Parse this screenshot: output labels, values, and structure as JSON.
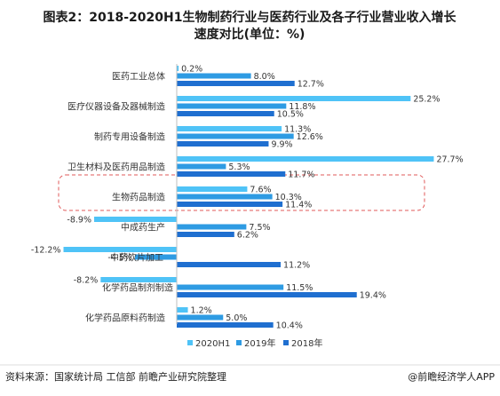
{
  "chart_data": {
    "type": "bar",
    "orientation": "horizontal",
    "title": "图表2：2018-2020H1生物制药行业与医药行业及各子行业营业收入增长速度对比(单位：%)",
    "categories": [
      "医药工业总体",
      "医疗仪器设备及器械制造",
      "制药专用设备制造",
      "卫生材料及医药用品制造",
      "生物药品制造",
      "中成药生产",
      "中药饮片加工",
      "化学药品制剂制造",
      "化学药品原料药制造"
    ],
    "series": [
      {
        "name": "2020H1",
        "color": "#4FC3F7",
        "values": [
          0.2,
          25.2,
          11.3,
          27.7,
          7.6,
          -8.9,
          -12.2,
          -8.2,
          1.2
        ],
        "labels": [
          "0.2%",
          "25.2%",
          "11.3%",
          "27.7%",
          "7.6%",
          "-8.9%",
          "-12.2%",
          "-8.2%",
          "1.2%"
        ]
      },
      {
        "name": "2019年",
        "color": "#2E9BE3",
        "values": [
          8.0,
          11.8,
          12.6,
          5.3,
          10.3,
          7.5,
          -4.5,
          11.5,
          5.0
        ],
        "labels": [
          "8.0%",
          "11.8%",
          "12.6%",
          "5.3%",
          "10.3%",
          "7.5%",
          "-4.5%",
          "11.5%",
          "5.0%"
        ]
      },
      {
        "name": "2018年",
        "color": "#1F6FD0",
        "values": [
          12.7,
          10.5,
          9.9,
          11.7,
          11.4,
          6.2,
          11.2,
          19.4,
          10.4
        ],
        "labels": [
          "12.7%",
          "10.5%",
          "9.9%",
          "11.7%",
          "11.4%",
          "6.2%",
          "11.2%",
          "19.4%",
          "10.4%"
        ]
      }
    ],
    "highlight_category": "生物药品制造",
    "legend_position": "bottom",
    "grid": false
  },
  "footer": {
    "source": "资料来源：国家统计局 工信部 前瞻产业研究院整理",
    "brand": "@前瞻经济学人APP"
  }
}
